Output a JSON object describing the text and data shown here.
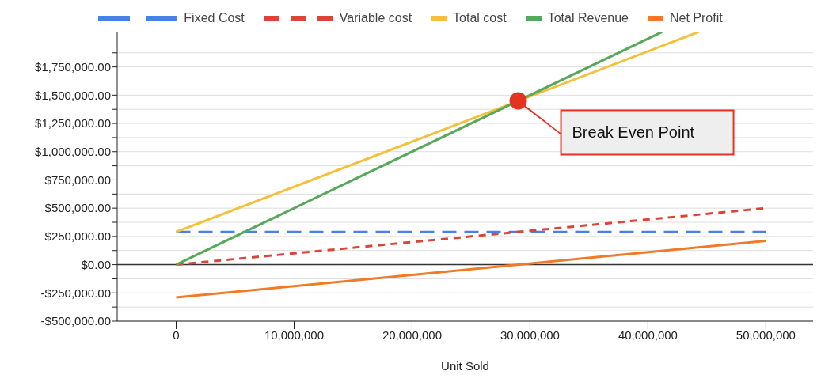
{
  "chart_data": {
    "type": "line",
    "xlabel": "Unit Sold",
    "xlim": [
      -5000000,
      54000000
    ],
    "xticks": [
      {
        "value": 0,
        "label": "0"
      },
      {
        "value": 10000000,
        "label": "10,000,000"
      },
      {
        "value": 20000000,
        "label": "20,000,000"
      },
      {
        "value": 30000000,
        "label": "30,000,000"
      },
      {
        "value": 40000000,
        "label": "40,000,000"
      },
      {
        "value": 50000000,
        "label": "50,000,000"
      }
    ],
    "ylim": [
      -500000,
      2062500
    ],
    "yticks": [
      {
        "value": -500000,
        "label": "-$500,000.00"
      },
      {
        "value": -375000,
        "label": null
      },
      {
        "value": -250000,
        "label": "-$250,000.00"
      },
      {
        "value": -125000,
        "label": null
      },
      {
        "value": 0,
        "label": "$0.00"
      },
      {
        "value": 125000,
        "label": null
      },
      {
        "value": 250000,
        "label": "$250,000.00"
      },
      {
        "value": 375000,
        "label": null
      },
      {
        "value": 500000,
        "label": "$500,000.00"
      },
      {
        "value": 625000,
        "label": null
      },
      {
        "value": 750000,
        "label": "$750,000.00"
      },
      {
        "value": 875000,
        "label": null
      },
      {
        "value": 1000000,
        "label": "$1,000,000.00"
      },
      {
        "value": 1125000,
        "label": null
      },
      {
        "value": 1250000,
        "label": "$1,250,000.00"
      },
      {
        "value": 1375000,
        "label": null
      },
      {
        "value": 1500000,
        "label": "$1,500,000.00"
      },
      {
        "value": 1625000,
        "label": null
      },
      {
        "value": 1750000,
        "label": "$1,750,000.00"
      },
      {
        "value": 1875000,
        "label": null
      }
    ],
    "grid": "y",
    "legend": "top",
    "marker": "none",
    "series": [
      {
        "name": "Fixed Cost",
        "color": "#4a7fe8",
        "line_style": "dashed",
        "x": [
          0,
          50000000
        ],
        "values": [
          290000,
          290000
        ]
      },
      {
        "name": "Variable cost",
        "color": "#db4437",
        "line_style": "dashed",
        "x": [
          0,
          50000000
        ],
        "values": [
          0,
          500000
        ]
      },
      {
        "name": "Total cost",
        "color": "#f4c037",
        "line_style": "solid",
        "x": [
          0,
          44300000
        ],
        "values": [
          290000,
          2060000
        ]
      },
      {
        "name": "Total Revenue",
        "color": "#57a85a",
        "line_style": "solid",
        "x": [
          0,
          41200000
        ],
        "values": [
          0,
          2060000
        ]
      },
      {
        "name": "Net Profit",
        "color": "#f07a26",
        "line_style": "solid",
        "x": [
          0,
          50000000
        ],
        "values": [
          -290000,
          210000
        ]
      },
      {
        "type": "scatter",
        "color": "#e53322",
        "marker": "circle",
        "x": [
          29000000
        ],
        "values": [
          1450000
        ]
      }
    ],
    "ref_lines": [
      {
        "axis": "y",
        "value": 0,
        "label": null,
        "color": "#333333"
      }
    ],
    "annotations": [
      "Break Even Point"
    ]
  }
}
